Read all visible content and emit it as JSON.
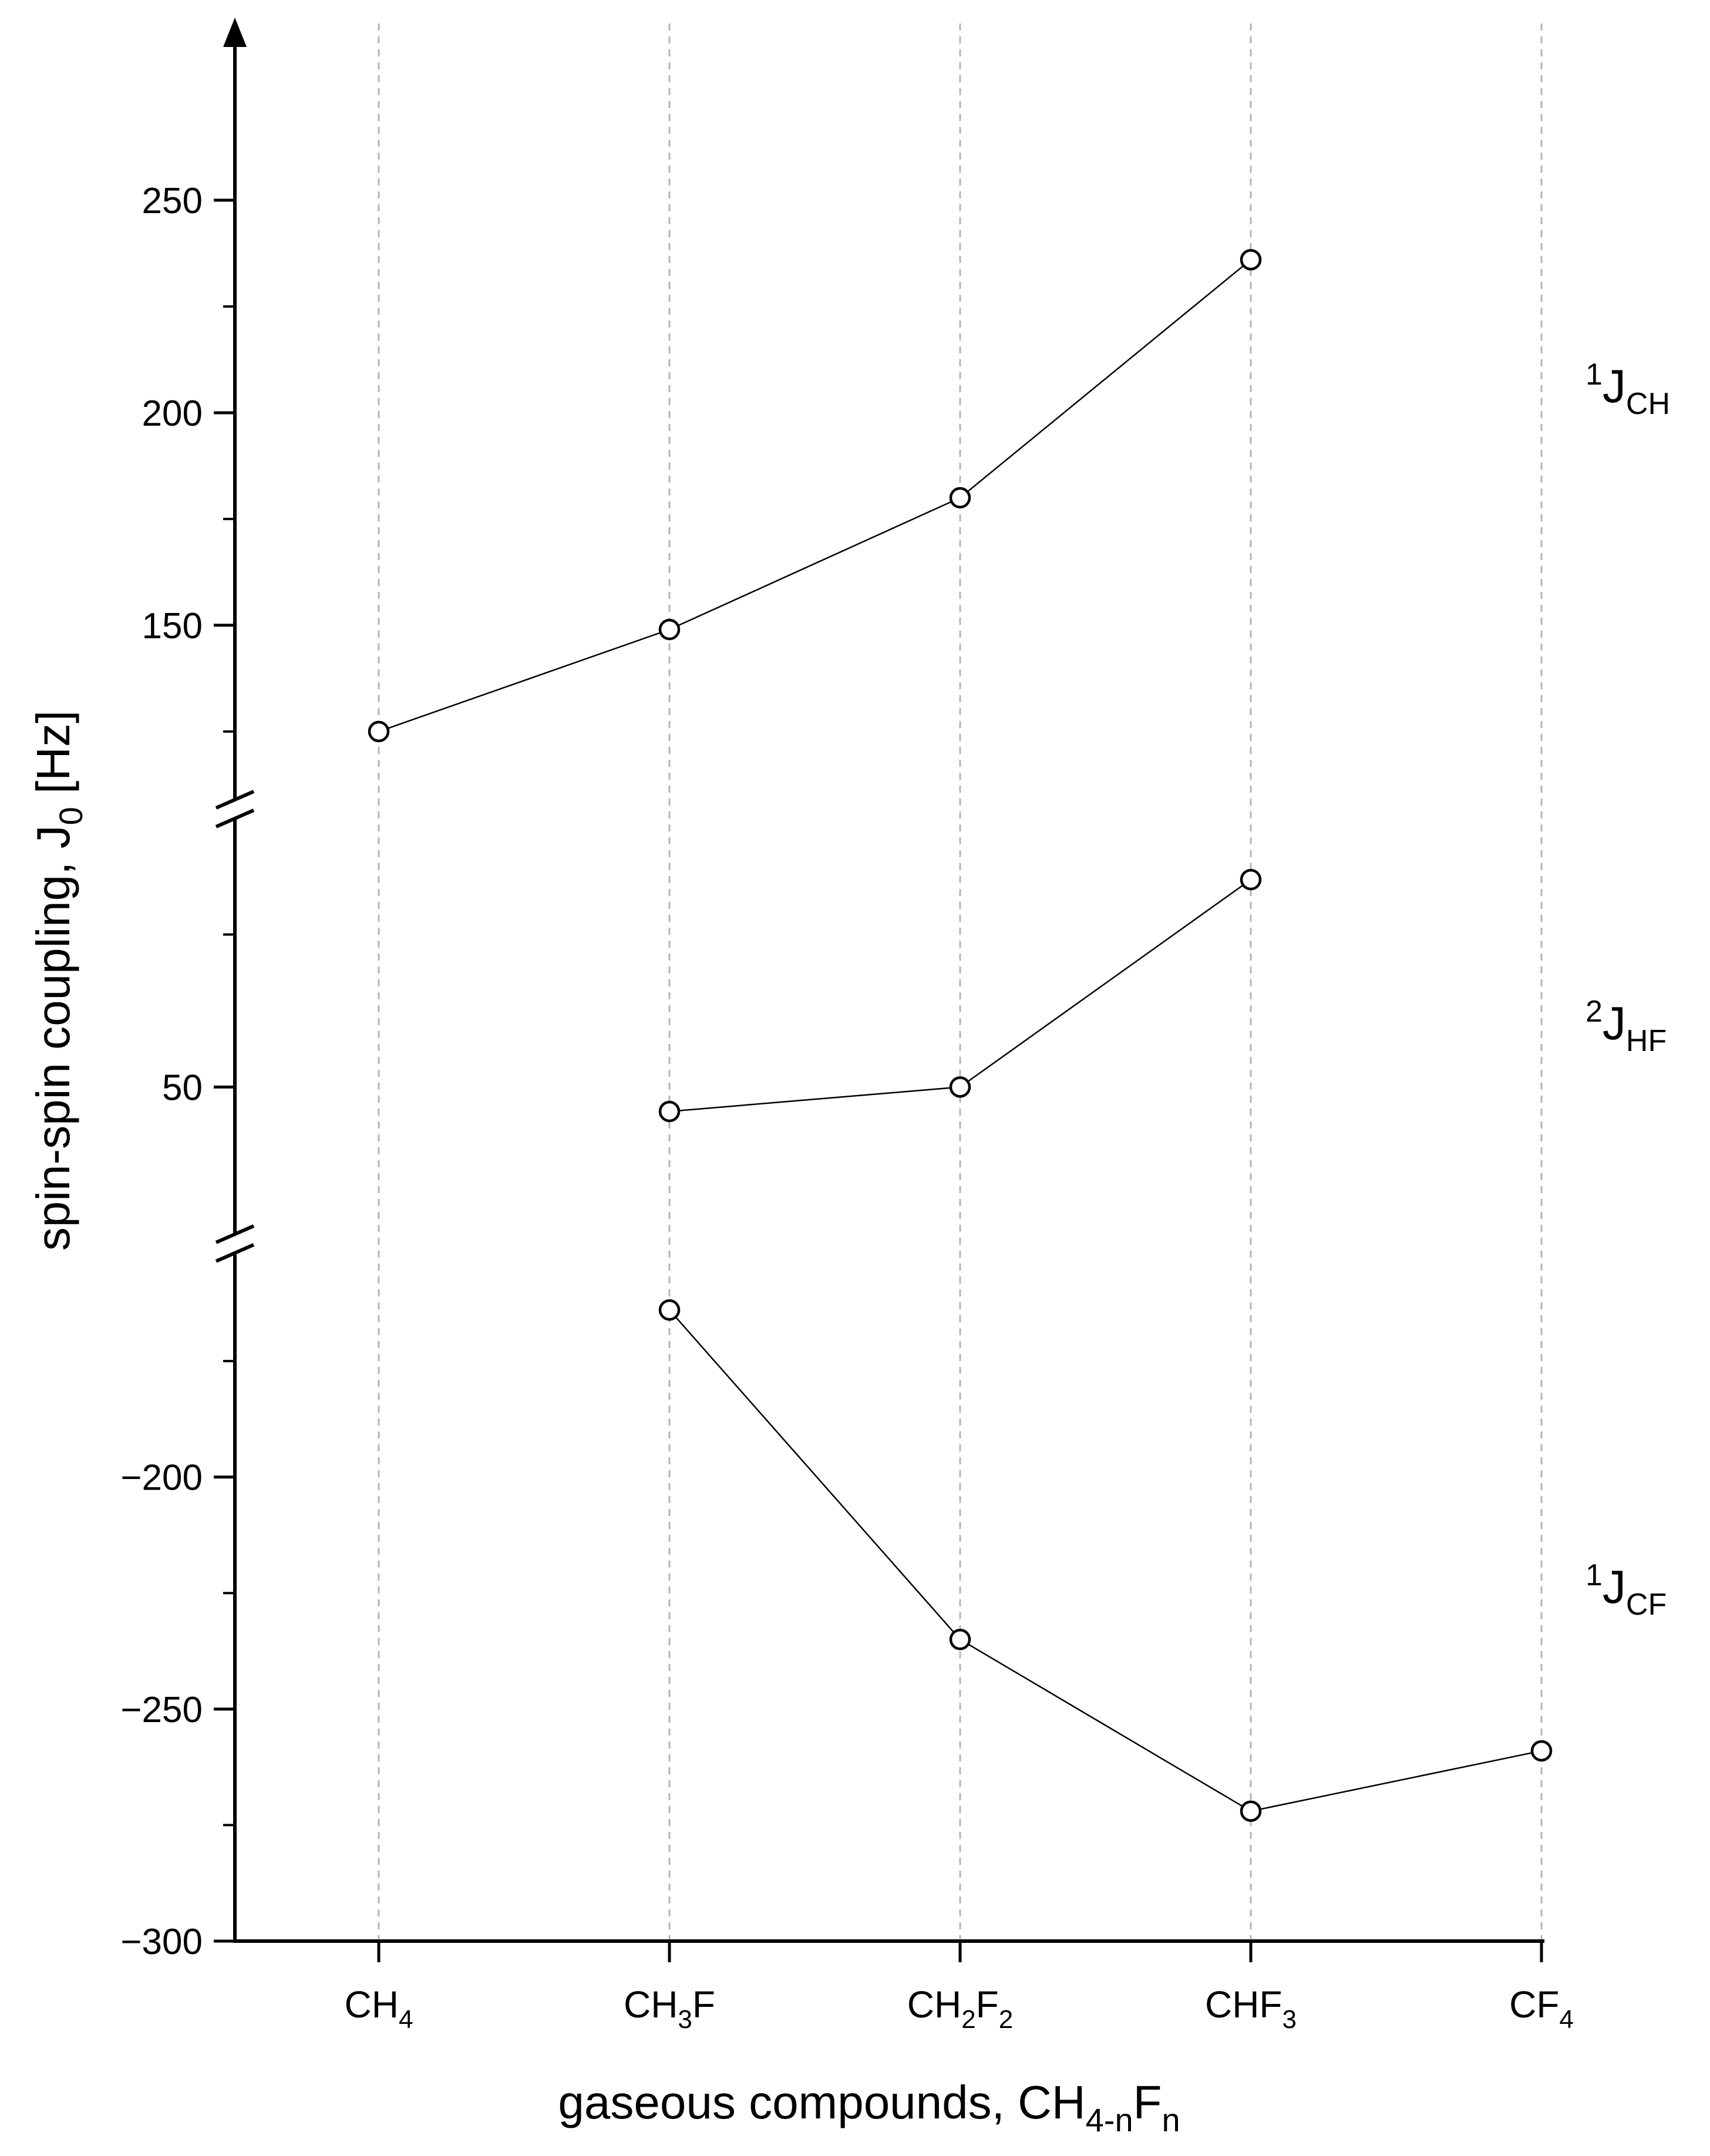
{
  "chart_data": {
    "type": "line",
    "xlabel": {
      "main": "gaseous compounds, CH",
      "sub1": "4-n",
      "mid": "F",
      "sub2": "n"
    },
    "ylabel": {
      "main": "spin-spin coupling, J",
      "sub": "0",
      "unit": " [Hz]"
    },
    "categories": [
      {
        "base": "CH",
        "sub": "4",
        "base2": "",
        "sub2": ""
      },
      {
        "base": "CH",
        "sub": "3",
        "base2": "F",
        "sub2": ""
      },
      {
        "base": "CH",
        "sub": "2",
        "base2": "F",
        "sub2": "2"
      },
      {
        "base": "CHF",
        "sub": "3",
        "base2": "",
        "sub2": ""
      },
      {
        "base": "CF",
        "sub": "4",
        "base2": "",
        "sub2": ""
      }
    ],
    "grid": "vertical dashed",
    "broken_axis": true,
    "panels": [
      {
        "ylim": [
          112,
          275
        ],
        "ticks": [
          "250",
          "200",
          "150"
        ],
        "tick_values": [
          250,
          200,
          150
        ],
        "minor_ticks": [
          125,
          175,
          225
        ],
        "series": [
          {
            "label_sup": "1",
            "label_main": "J",
            "label_sub": "CH",
            "x": [
              0,
              1,
              2,
              3
            ],
            "values": [
              125,
              149,
              180,
              236
            ]
          }
        ]
      },
      {
        "ylim": [
          28,
          92
        ],
        "ticks": [
          "50"
        ],
        "tick_values": [
          50
        ],
        "minor_ticks": [
          75
        ],
        "series": [
          {
            "label_sup": "2",
            "label_main": "J",
            "label_sub": "HF",
            "x": [
              1,
              2,
              3
            ],
            "values": [
              46,
              50,
              84
            ]
          }
        ]
      },
      {
        "ylim": [
          -300,
          -155
        ],
        "ticks": [
          "−200",
          "−250",
          "−300"
        ],
        "tick_values": [
          -200,
          -250,
          -300
        ],
        "minor_ticks": [
          -175,
          -225,
          -275
        ],
        "series": [
          {
            "label_sup": "1",
            "label_main": "J",
            "label_sub": "CF",
            "x": [
              1,
              2,
              3,
              4
            ],
            "values": [
              -164,
              -235,
              -272,
              -259
            ]
          }
        ]
      }
    ]
  }
}
